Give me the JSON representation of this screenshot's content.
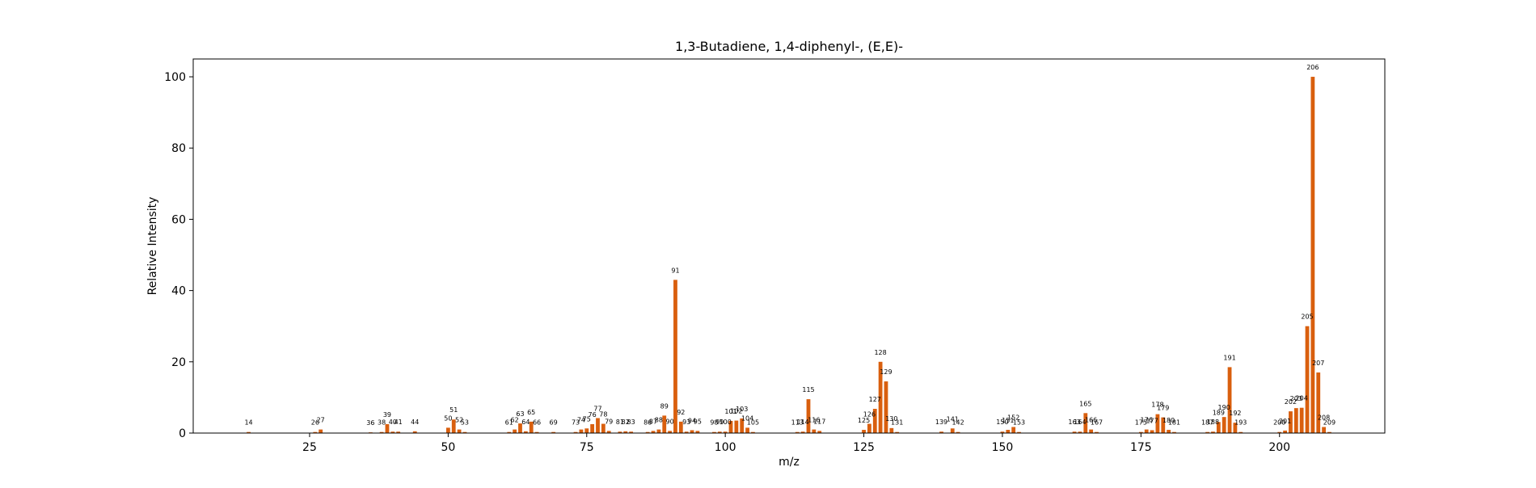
{
  "chart_data": {
    "type": "bar",
    "title": "1,3-Butadiene, 1,4-diphenyl-, (E,E)-",
    "xlabel": "m/z",
    "ylabel": "Relative Intensity",
    "xlim": [
      4,
      219
    ],
    "ylim": [
      0,
      105
    ],
    "xticks": [
      25,
      50,
      75,
      100,
      125,
      150,
      175,
      200
    ],
    "yticks": [
      0,
      20,
      40,
      60,
      80,
      100
    ],
    "grid": false,
    "bar_color": "#d95f0e",
    "x": [
      14,
      26,
      27,
      36,
      38,
      39,
      40,
      41,
      44,
      50,
      51,
      52,
      53,
      61,
      62,
      63,
      64,
      65,
      66,
      69,
      73,
      74,
      75,
      76,
      77,
      78,
      79,
      81,
      82,
      83,
      86,
      87,
      88,
      89,
      90,
      91,
      92,
      93,
      94,
      95,
      98,
      99,
      100,
      101,
      102,
      103,
      104,
      105,
      113,
      114,
      115,
      116,
      117,
      125,
      126,
      127,
      128,
      129,
      130,
      131,
      139,
      141,
      142,
      150,
      151,
      152,
      153,
      163,
      164,
      165,
      166,
      167,
      175,
      176,
      177,
      178,
      179,
      180,
      181,
      187,
      188,
      189,
      190,
      191,
      192,
      193,
      200,
      201,
      202,
      203,
      204,
      205,
      206,
      207,
      208,
      209
    ],
    "values": [
      0.3,
      0.3,
      1.0,
      0.2,
      0.3,
      2.5,
      0.4,
      0.4,
      0.5,
      1.5,
      3.8,
      1.0,
      0.3,
      0.3,
      1.0,
      2.7,
      0.5,
      3.2,
      0.3,
      0.3,
      0.3,
      1.0,
      1.3,
      2.5,
      4.2,
      2.6,
      0.6,
      0.4,
      0.5,
      0.4,
      0.3,
      0.6,
      1.0,
      4.9,
      0.6,
      43.0,
      3.2,
      0.4,
      0.8,
      0.6,
      0.3,
      0.4,
      0.4,
      3.4,
      3.5,
      4.1,
      1.5,
      0.3,
      0.3,
      0.4,
      9.5,
      1.0,
      0.6,
      0.9,
      2.6,
      6.8,
      20.0,
      14.5,
      1.4,
      0.3,
      0.4,
      1.3,
      0.3,
      0.4,
      0.9,
      1.7,
      0.3,
      0.4,
      0.4,
      5.6,
      1.0,
      0.3,
      0.3,
      1.0,
      0.8,
      5.3,
      4.4,
      0.9,
      0.3,
      0.3,
      0.4,
      3.1,
      4.5,
      18.5,
      2.9,
      0.3,
      0.3,
      0.7,
      6.1,
      7.0,
      7.1,
      30.0,
      100.0,
      17.0,
      1.7,
      0.3
    ],
    "labels": [
      "14",
      "26",
      "27",
      "36",
      "38",
      "39",
      "40",
      "41",
      "44",
      "50",
      "51",
      "52",
      "53",
      "61",
      "62",
      "63",
      "64",
      "65",
      "66",
      "69",
      "73",
      "74",
      "75",
      "76",
      "77",
      "78",
      "79",
      "81",
      "82",
      "83",
      "86",
      "87",
      "88",
      "89",
      "90",
      "91",
      "92",
      "93",
      "94",
      "95",
      "98",
      "99",
      "100",
      "101",
      "102",
      "103",
      "104",
      "105",
      "113",
      "114",
      "115",
      "116",
      "117",
      "125",
      "126",
      "127",
      "128",
      "129",
      "130",
      "131",
      "139",
      "141",
      "142",
      "150",
      "151",
      "152",
      "153",
      "163",
      "164",
      "165",
      "166",
      "167",
      "175",
      "176",
      "177",
      "178",
      "179",
      "180",
      "181",
      "187",
      "188",
      "189",
      "190",
      "191",
      "192",
      "193",
      "200",
      "201",
      "202",
      "203",
      "204",
      "205",
      "206",
      "207",
      "208",
      "209"
    ]
  }
}
